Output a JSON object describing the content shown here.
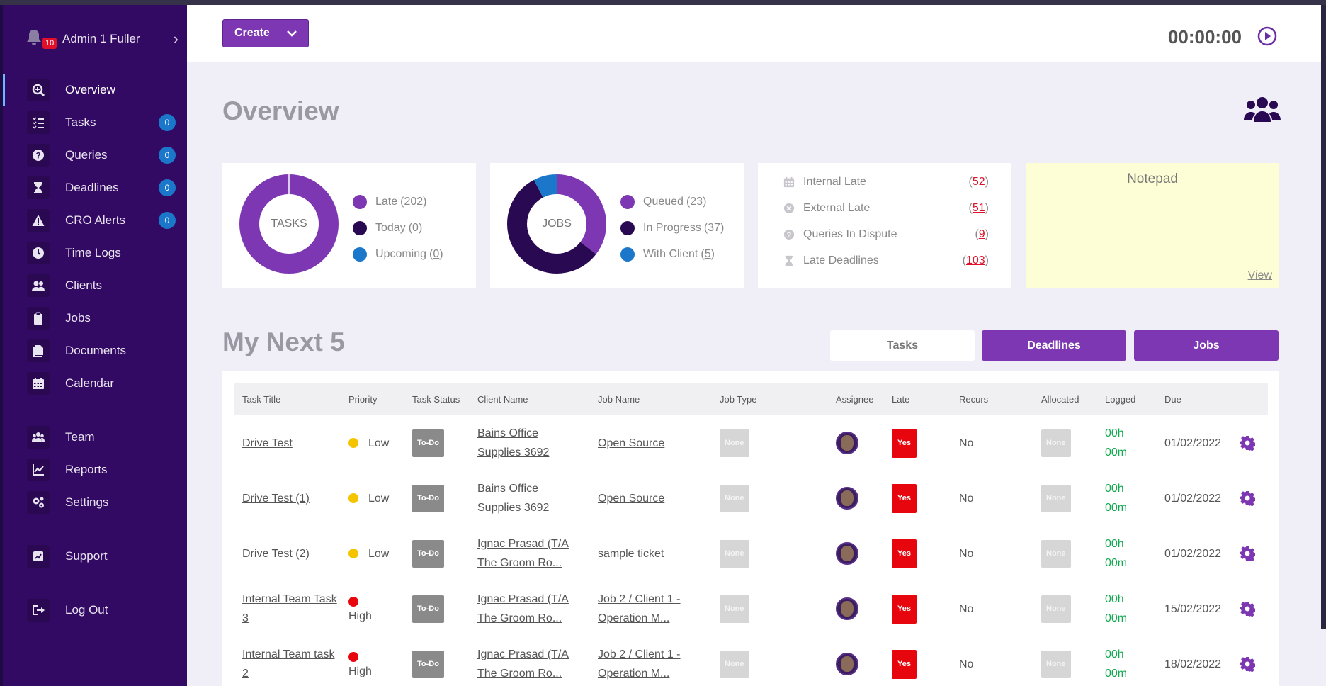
{
  "user": {
    "name": "Admin 1 Fuller",
    "notifications": "10"
  },
  "nav": [
    {
      "label": "Overview",
      "icon": "search-plus-icon",
      "active": true
    },
    {
      "label": "Tasks",
      "icon": "tasks-icon",
      "badge": "0"
    },
    {
      "label": "Queries",
      "icon": "question-circle-icon",
      "badge": "0"
    },
    {
      "label": "Deadlines",
      "icon": "hourglass-icon",
      "badge": "0"
    },
    {
      "label": "CRO Alerts",
      "icon": "warning-icon",
      "badge": "0"
    },
    {
      "label": "Time Logs",
      "icon": "clock-icon"
    },
    {
      "label": "Clients",
      "icon": "users-icon"
    },
    {
      "label": "Jobs",
      "icon": "clipboard-icon"
    },
    {
      "label": "Documents",
      "icon": "documents-icon"
    },
    {
      "label": "Calendar",
      "icon": "calendar-icon"
    },
    {
      "label": "Team",
      "icon": "team-icon"
    },
    {
      "label": "Reports",
      "icon": "chart-line-icon"
    },
    {
      "label": "Settings",
      "icon": "cogs-icon"
    },
    {
      "label": "Support",
      "icon": "support-icon"
    },
    {
      "label": "Log Out",
      "icon": "logout-icon"
    }
  ],
  "header": {
    "create_label": "Create",
    "timer": "00:00:00"
  },
  "overview": {
    "title": "Overview",
    "tasks": {
      "center": "TASKS",
      "legend": [
        {
          "label": "Late",
          "count": "202",
          "color": "#7d37b3"
        },
        {
          "label": "Today",
          "count": "0",
          "color": "#2a0953"
        },
        {
          "label": "Upcoming",
          "count": "0",
          "color": "#1a77c9"
        }
      ]
    },
    "jobs": {
      "center": "JOBS",
      "legend": [
        {
          "label": "Queued",
          "count": "23",
          "color": "#7d37b3"
        },
        {
          "label": "In Progress",
          "count": "37",
          "color": "#2a0953"
        },
        {
          "label": "With Client",
          "count": "5",
          "color": "#1a77c9"
        }
      ]
    },
    "stats": [
      {
        "label": "Internal Late",
        "value": "52",
        "icon": "calendar-icon"
      },
      {
        "label": "External Late",
        "value": "51",
        "icon": "times-circle-icon"
      },
      {
        "label": "Queries In Dispute",
        "value": "9",
        "icon": "question-circle-icon"
      },
      {
        "label": "Late Deadlines",
        "value": "103",
        "icon": "hourglass-icon"
      }
    ],
    "notepad": {
      "title": "Notepad",
      "view_label": "View"
    }
  },
  "next": {
    "title": "My Next 5",
    "tabs": [
      "Tasks",
      "Deadlines",
      "Jobs"
    ],
    "columns": [
      "Task Title",
      "Priority",
      "Task Status",
      "Client Name",
      "Job Name",
      "Job Type",
      "Assignee",
      "Late",
      "Recurs",
      "Allocated",
      "Logged",
      "Due"
    ],
    "rows": [
      {
        "title": [
          "Drive Test"
        ],
        "priority": "Low",
        "priority_color": "#f5c400",
        "status": "To-Do",
        "client": [
          "Bains Office",
          "Supplies 3692"
        ],
        "job": [
          "Open Source"
        ],
        "job_type": "None",
        "late": "Yes",
        "recurs": "No",
        "allocated": "None",
        "logged": [
          "00h",
          "00m"
        ],
        "due": "01/02/2022"
      },
      {
        "title": [
          "Drive Test (1)"
        ],
        "priority": "Low",
        "priority_color": "#f5c400",
        "status": "To-Do",
        "client": [
          "Bains Office",
          "Supplies 3692"
        ],
        "job": [
          "Open Source"
        ],
        "job_type": "None",
        "late": "Yes",
        "recurs": "No",
        "allocated": "None",
        "logged": [
          "00h",
          "00m"
        ],
        "due": "01/02/2022"
      },
      {
        "title": [
          "Drive Test (2)"
        ],
        "priority": "Low",
        "priority_color": "#f5c400",
        "status": "To-Do",
        "client": [
          "Ignac Prasad (T/A",
          "The Groom Ro..."
        ],
        "job": [
          "sample ticket"
        ],
        "job_type": "None",
        "late": "Yes",
        "recurs": "No",
        "allocated": "None",
        "logged": [
          "00h",
          "00m"
        ],
        "due": "01/02/2022"
      },
      {
        "title": [
          "Internal Team Task",
          "3"
        ],
        "priority": "High",
        "priority_color": "#e8060e",
        "status": "To-Do",
        "client": [
          "Ignac Prasad (T/A",
          "The Groom Ro..."
        ],
        "job": [
          "Job 2 / Client 1 -",
          "Operation M..."
        ],
        "job_type": "None",
        "late": "Yes",
        "recurs": "No",
        "allocated": "None",
        "logged": [
          "00h",
          "00m"
        ],
        "due": "15/02/2022"
      },
      {
        "title": [
          "Internal Team task",
          "2"
        ],
        "priority": "High",
        "priority_color": "#e8060e",
        "status": "To-Do",
        "client": [
          "Ignac Prasad (T/A",
          "The Groom Ro..."
        ],
        "job": [
          "Job 2 / Client 1 -",
          "Operation M..."
        ],
        "job_type": "None",
        "late": "Yes",
        "recurs": "No",
        "allocated": "None",
        "logged": [
          "00h",
          "00m"
        ],
        "due": "18/02/2022"
      }
    ]
  }
}
